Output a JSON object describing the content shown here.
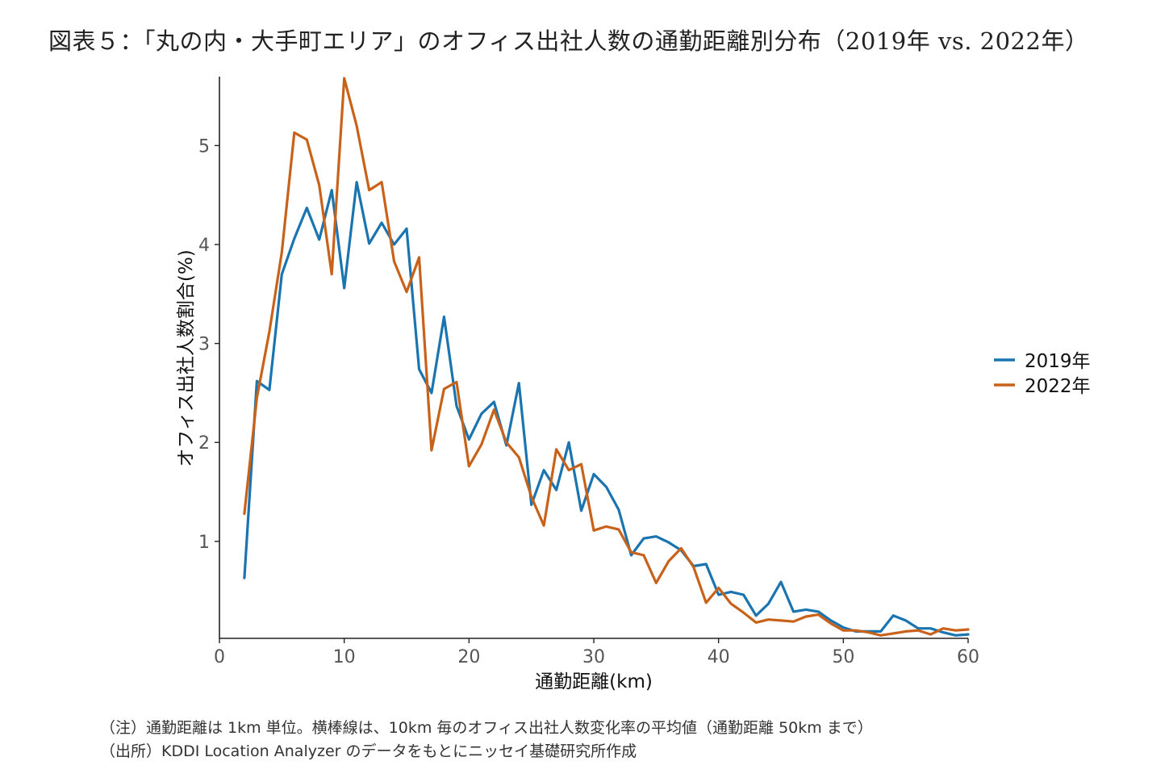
{
  "title": "図表５：「丸の内・大手町エリア」のオフィス出社人数の通勤距離別分布（2019年 vs. 2022年）",
  "notes": {
    "note1": "（注）通勤距離は 1km 単位。横棒線は、10km 毎のオフィス出社人数変化率の平均値（通勤距離 50km まで）",
    "note2": "（出所）KDDI Location Analyzer のデータをもとにニッセイ基礎研究所作成"
  },
  "chart_data": {
    "type": "line",
    "xlabel": "通勤距離(km)",
    "ylabel": "オフィス出社人数割合(%)",
    "xlim": [
      0,
      60
    ],
    "ylim": [
      0.02,
      5.68
    ],
    "xticks": [
      0,
      10,
      20,
      30,
      40,
      50,
      60
    ],
    "yticks": [
      1,
      2,
      3,
      4,
      5
    ],
    "grid": false,
    "legend_position": "right",
    "x": [
      2,
      3,
      4,
      5,
      6,
      7,
      8,
      9,
      10,
      11,
      12,
      13,
      14,
      15,
      16,
      17,
      18,
      19,
      20,
      21,
      22,
      23,
      24,
      25,
      26,
      27,
      28,
      29,
      30,
      31,
      32,
      33,
      34,
      35,
      36,
      37,
      38,
      39,
      40,
      41,
      42,
      43,
      44,
      45,
      46,
      47,
      48,
      49,
      50,
      51,
      52,
      53,
      54,
      55,
      56,
      57,
      58,
      59,
      60
    ],
    "series": [
      {
        "name": "2019年",
        "color": "#1a74b0",
        "values": [
          0.63,
          2.62,
          2.53,
          3.7,
          4.06,
          4.37,
          4.05,
          4.55,
          3.56,
          4.63,
          4.01,
          4.22,
          4.0,
          4.16,
          2.74,
          2.5,
          3.27,
          2.37,
          2.03,
          2.29,
          2.41,
          1.97,
          2.6,
          1.37,
          1.72,
          1.52,
          2.0,
          1.31,
          1.68,
          1.55,
          1.32,
          0.86,
          1.03,
          1.05,
          0.99,
          0.91,
          0.75,
          0.77,
          0.46,
          0.49,
          0.46,
          0.25,
          0.37,
          0.59,
          0.29,
          0.31,
          0.29,
          0.2,
          0.13,
          0.09,
          0.09,
          0.09,
          0.25,
          0.2,
          0.12,
          0.12,
          0.08,
          0.05,
          0.06
        ]
      },
      {
        "name": "2022年",
        "color": "#c8621a",
        "values": [
          1.28,
          2.45,
          3.12,
          3.92,
          5.13,
          5.06,
          4.6,
          3.7,
          5.68,
          5.2,
          4.55,
          4.63,
          3.83,
          3.52,
          3.87,
          1.92,
          2.54,
          2.61,
          1.76,
          1.98,
          2.33,
          2.0,
          1.85,
          1.45,
          1.16,
          1.93,
          1.72,
          1.78,
          1.11,
          1.15,
          1.12,
          0.89,
          0.86,
          0.58,
          0.8,
          0.93,
          0.74,
          0.38,
          0.53,
          0.37,
          0.28,
          0.18,
          0.21,
          0.2,
          0.19,
          0.24,
          0.26,
          0.17,
          0.1,
          0.1,
          0.08,
          0.05,
          0.07,
          0.09,
          0.1,
          0.06,
          0.12,
          0.1,
          0.11
        ]
      }
    ]
  }
}
